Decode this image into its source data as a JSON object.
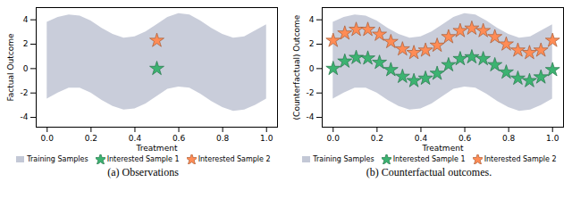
{
  "chart_data": [
    {
      "type": "scatter",
      "title": "(a) Observations",
      "x_label": "Treatment",
      "y_label": "Factual Outcome",
      "xlim": [
        -0.05,
        1.05
      ],
      "ylim": [
        -4.8,
        5.0
      ],
      "xticks": [
        {
          "value": 0,
          "label": "0.0"
        },
        {
          "value": 0.2,
          "label": "0.2"
        },
        {
          "value": 0.4,
          "label": "0.4"
        },
        {
          "value": 0.6,
          "label": "0.6"
        },
        {
          "value": 0.8,
          "label": "0.8"
        },
        {
          "value": 1,
          "label": "1.0"
        }
      ],
      "yticks": [
        -4,
        -2,
        0,
        2,
        4
      ],
      "legend": "bottom",
      "series": [
        {
          "name": "Training Samples",
          "type": "area",
          "color": "#c3c8d6",
          "x": [
            0,
            0.05,
            0.1,
            0.15,
            0.2,
            0.25,
            0.3,
            0.35,
            0.4,
            0.45,
            0.5,
            0.55,
            0.6,
            0.65,
            0.7,
            0.75,
            0.8,
            0.85,
            0.9,
            0.95,
            1.0
          ],
          "lower": [
            -2.5,
            -2.0,
            -1.6,
            -1.6,
            -2.0,
            -2.6,
            -3.1,
            -3.4,
            -3.3,
            -2.9,
            -2.3,
            -1.7,
            -1.5,
            -1.6,
            -2.1,
            -2.7,
            -3.2,
            -3.5,
            -3.4,
            -3.0,
            -2.5
          ],
          "upper": [
            3.8,
            4.2,
            4.4,
            4.3,
            3.9,
            3.3,
            2.8,
            2.5,
            2.6,
            3.0,
            3.6,
            4.2,
            4.5,
            4.4,
            3.9,
            3.3,
            2.8,
            2.5,
            2.6,
            3.1,
            3.6
          ]
        },
        {
          "name": "Interested Sample 1",
          "type": "scatter",
          "marker": "star",
          "color": "#3cb371",
          "x": [
            0.5
          ],
          "values": [
            0.0
          ]
        },
        {
          "name": "Interested Sample 2",
          "type": "scatter",
          "marker": "star",
          "color": "#ff8c55",
          "x": [
            0.5
          ],
          "values": [
            2.3
          ]
        }
      ]
    },
    {
      "type": "scatter",
      "title": "(b) Counterfactual outcomes.",
      "x_label": "Treatment",
      "y_label": "(Counterfactual) Outcome",
      "xlim": [
        -0.05,
        1.05
      ],
      "ylim": [
        -4.8,
        5.0
      ],
      "xticks": [
        {
          "value": 0,
          "label": "0.0"
        },
        {
          "value": 0.2,
          "label": "0.2"
        },
        {
          "value": 0.4,
          "label": "0.4"
        },
        {
          "value": 0.6,
          "label": "0.6"
        },
        {
          "value": 0.8,
          "label": "0.8"
        },
        {
          "value": 1,
          "label": "1.0"
        }
      ],
      "yticks": [
        -4,
        -2,
        0,
        2,
        4
      ],
      "legend": "bottom",
      "series": [
        {
          "name": "Training Samples",
          "type": "area",
          "color": "#c3c8d6",
          "x": [
            0,
            0.05,
            0.1,
            0.15,
            0.2,
            0.25,
            0.3,
            0.35,
            0.4,
            0.45,
            0.5,
            0.55,
            0.6,
            0.65,
            0.7,
            0.75,
            0.8,
            0.85,
            0.9,
            0.95,
            1.0
          ],
          "lower": [
            -2.5,
            -2.0,
            -1.6,
            -1.6,
            -2.0,
            -2.6,
            -3.1,
            -3.4,
            -3.3,
            -2.9,
            -2.3,
            -1.7,
            -1.5,
            -1.6,
            -2.1,
            -2.7,
            -3.2,
            -3.5,
            -3.4,
            -3.0,
            -2.5
          ],
          "upper": [
            3.8,
            4.2,
            4.4,
            4.3,
            3.9,
            3.3,
            2.8,
            2.5,
            2.6,
            3.0,
            3.6,
            4.2,
            4.5,
            4.4,
            3.9,
            3.3,
            2.8,
            2.5,
            2.6,
            3.1,
            3.6
          ]
        },
        {
          "name": "Interested Sample 1",
          "type": "scatter",
          "marker": "star",
          "color": "#3cb371",
          "x": [
            0,
            0.053,
            0.105,
            0.158,
            0.211,
            0.263,
            0.316,
            0.368,
            0.421,
            0.474,
            0.526,
            0.579,
            0.632,
            0.684,
            0.737,
            0.789,
            0.842,
            0.895,
            0.947,
            1.0
          ],
          "values": [
            0.0,
            0.6,
            0.9,
            0.85,
            0.5,
            -0.1,
            -0.65,
            -1.0,
            -0.8,
            -0.4,
            0.3,
            0.8,
            0.95,
            0.8,
            0.3,
            -0.3,
            -0.8,
            -1.0,
            -0.7,
            -0.1
          ]
        },
        {
          "name": "Interested Sample 2",
          "type": "scatter",
          "marker": "star",
          "color": "#ff8c55",
          "x": [
            0,
            0.053,
            0.105,
            0.158,
            0.211,
            0.263,
            0.316,
            0.368,
            0.421,
            0.474,
            0.526,
            0.579,
            0.632,
            0.684,
            0.737,
            0.789,
            0.842,
            0.895,
            0.947,
            1.0
          ],
          "values": [
            2.3,
            2.9,
            3.2,
            3.2,
            2.8,
            2.2,
            1.6,
            1.3,
            1.5,
            1.9,
            2.6,
            3.1,
            3.3,
            3.1,
            2.6,
            2.0,
            1.5,
            1.3,
            1.5,
            2.3
          ]
        }
      ]
    }
  ]
}
